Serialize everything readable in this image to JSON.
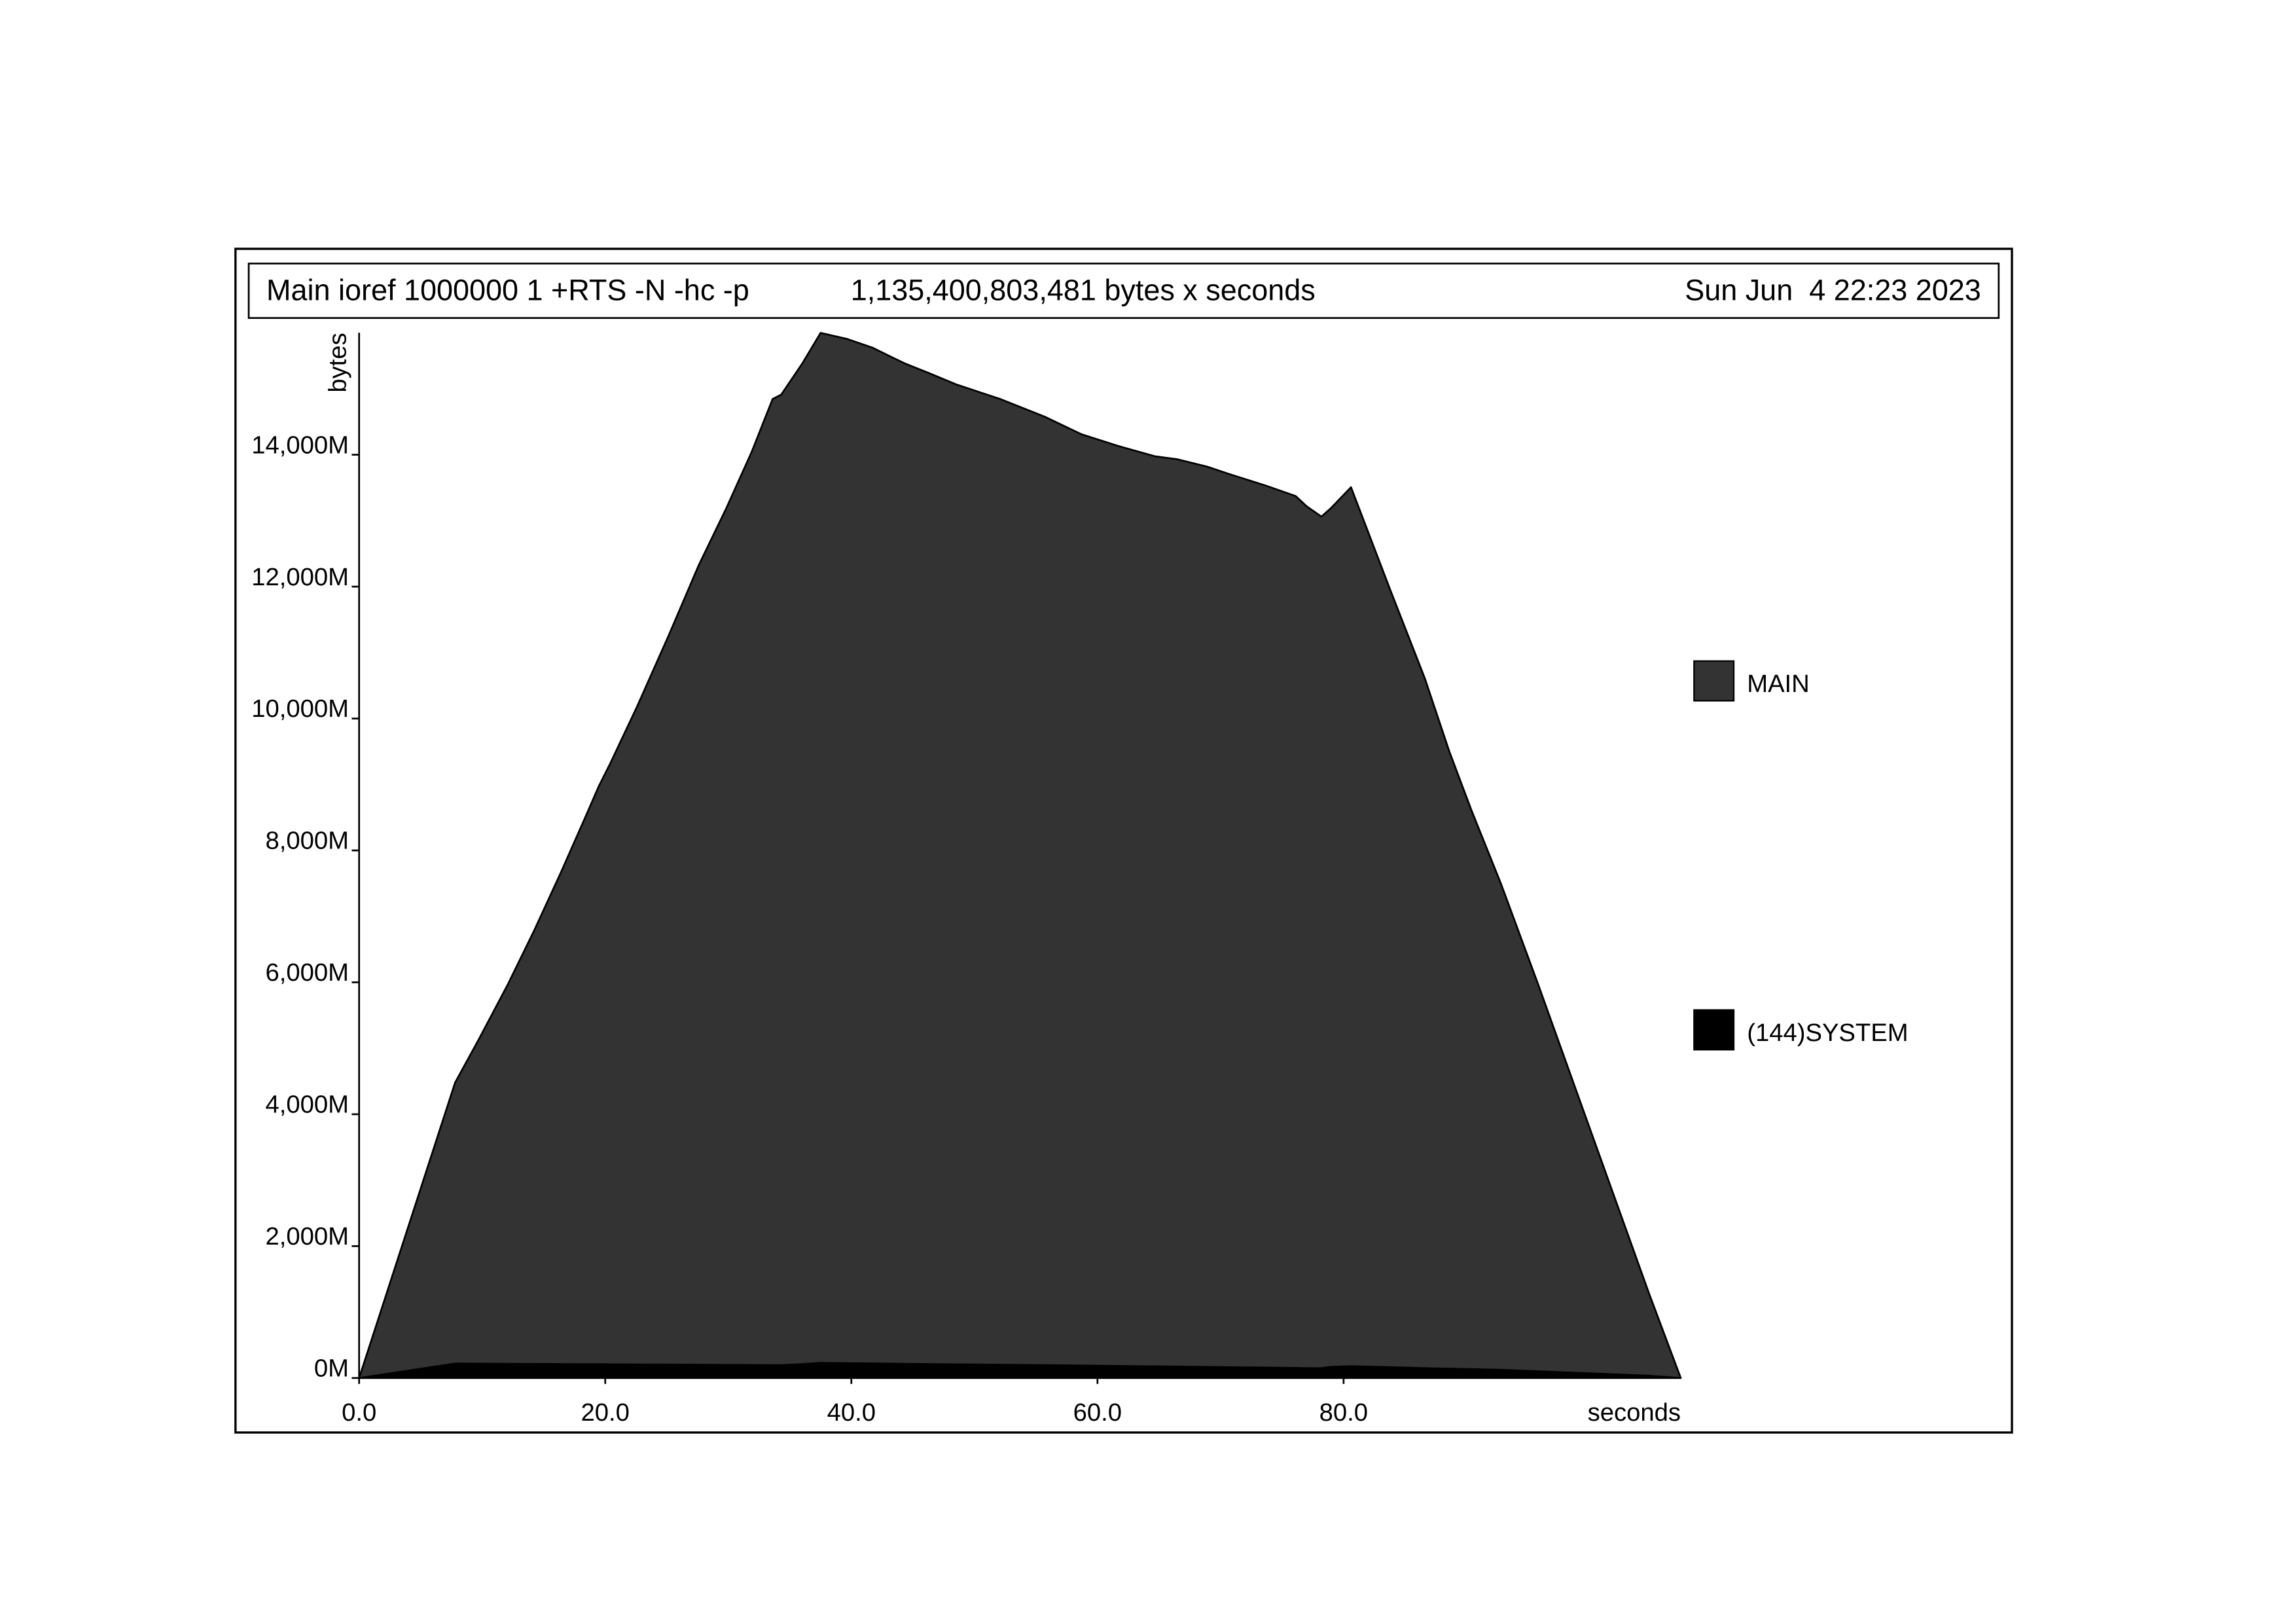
{
  "chart_data": {
    "type": "area",
    "stacked": true,
    "title": "Main ioref 1000000 1 +RTS -N -hc -p",
    "subtitle": "1,135,400,803,481 bytes x seconds",
    "date": "Sun Jun  4 22:23 2023",
    "x_label": "seconds",
    "y_label": "bytes",
    "legend": "right",
    "x": [
      0,
      7.8,
      9.7,
      12.1,
      14.2,
      16.4,
      18.3,
      19.5,
      20.4,
      22.6,
      25.2,
      27.6,
      29.8,
      31.9,
      33.6,
      34.3,
      36.0,
      37.5,
      39.6,
      41.7,
      43.4,
      44.4,
      46.2,
      48.5,
      52.1,
      55.7,
      58.7,
      61.7,
      64.7,
      66.5,
      68.9,
      70.7,
      73.7,
      76.1,
      77.0,
      78.2,
      79.0,
      80.6,
      83.8,
      86.6,
      87.4,
      88.6,
      90.4,
      92.8,
      95.8,
      98.8,
      101.8,
      104.8,
      107.4
    ],
    "series": [
      {
        "name": "MAIN",
        "color": "#333333",
        "values": [
          0,
          4260,
          4909,
          5758,
          6562,
          7456,
          8260,
          8773,
          9109,
          9981,
          11075,
          12124,
          12974,
          13845,
          14649,
          14717,
          15170,
          15618,
          15533,
          15403,
          15251,
          15165,
          15034,
          14860,
          14643,
          14383,
          14121,
          13949,
          13799,
          13758,
          13652,
          13544,
          13371,
          13220,
          13068,
          12912,
          13026,
          13328,
          11782,
          10460,
          10018,
          9354,
          8469,
          7364,
          5872,
          4333,
          2795,
          1258,
          0
        ]
      },
      {
        "name": "(144)SYSTEM",
        "color": "#000000",
        "values": [
          0,
          220,
          218,
          216,
          214,
          212,
          210,
          210,
          208,
          206,
          204,
          202,
          200,
          198,
          196,
          195,
          210,
          230,
          226,
          222,
          218,
          215,
          212,
          208,
          202,
          195,
          189,
          183,
          177,
          173,
          168,
          164,
          159,
          154,
          150,
          150,
          170,
          180,
          165,
          150,
          146,
          142,
          135,
          125,
          102,
          80,
          58,
          35,
          0
        ]
      }
    ],
    "xlim": [
      0,
      107.4
    ],
    "ylim": [
      0,
      15850
    ],
    "xticks": [
      {
        "value": 0,
        "label": "0.0"
      },
      {
        "value": 20,
        "label": "20.0"
      },
      {
        "value": 40,
        "label": "40.0"
      },
      {
        "value": 60,
        "label": "60.0"
      },
      {
        "value": 80,
        "label": "80.0"
      }
    ],
    "yticks": [
      {
        "value": 0,
        "label": "0M"
      },
      {
        "value": 2000,
        "label": "2,000M"
      },
      {
        "value": 4000,
        "label": "4,000M"
      },
      {
        "value": 6000,
        "label": "6,000M"
      },
      {
        "value": 8000,
        "label": "8,000M"
      },
      {
        "value": 10000,
        "label": "10,000M"
      },
      {
        "value": 12000,
        "label": "12,000M"
      },
      {
        "value": 14000,
        "label": "14,000M"
      }
    ]
  }
}
